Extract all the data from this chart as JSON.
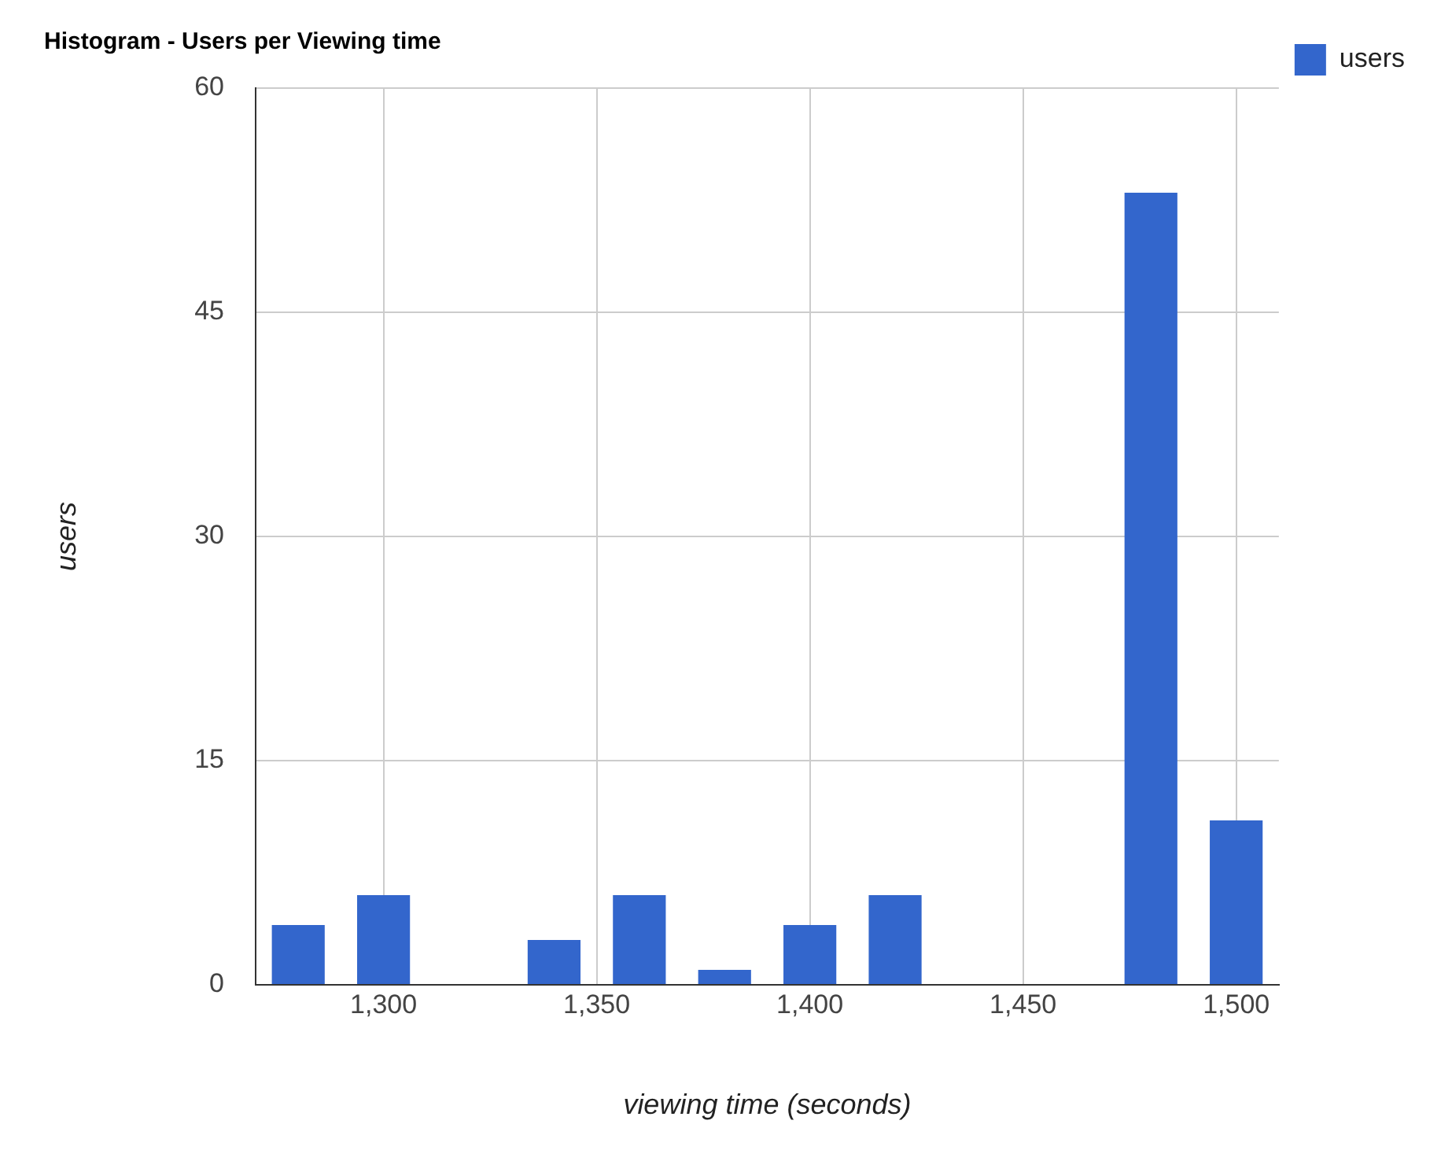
{
  "chart_data": {
    "type": "bar",
    "title": "Histogram - Users per Viewing time",
    "xlabel": "viewing time (seconds)",
    "ylabel": "users",
    "x": [
      1280,
      1300,
      1340,
      1360,
      1380,
      1400,
      1420,
      1480,
      1500
    ],
    "series": [
      {
        "name": "users",
        "color": "#3366cc",
        "values": [
          4,
          6,
          3,
          6,
          1,
          4,
          6,
          53,
          11
        ]
      }
    ],
    "xlim": [
      1270,
      1510
    ],
    "xticks": [
      {
        "value": 1300,
        "label": "1,300"
      },
      {
        "value": 1350,
        "label": "1,350"
      },
      {
        "value": 1400,
        "label": "1,400"
      },
      {
        "value": 1450,
        "label": "1,450"
      },
      {
        "value": 1500,
        "label": "1,500"
      }
    ],
    "ylim": [
      0,
      60
    ],
    "yticks": [
      0,
      15,
      30,
      45,
      60
    ],
    "grid": true,
    "legend": "top right"
  }
}
